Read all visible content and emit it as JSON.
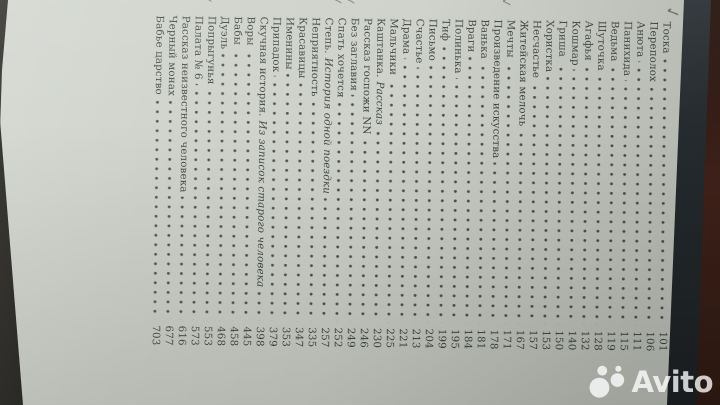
{
  "photo": {
    "watermark": "Avito"
  },
  "book_page": {
    "kind": "table-of-contents",
    "orientation": "rotated-90-cw",
    "entries": [
      {
        "title": "Тоска",
        "page": "101"
      },
      {
        "title": "Переполох",
        "page": "106"
      },
      {
        "title": "Анюта",
        "page": "111"
      },
      {
        "title": "Панихида",
        "page": "115"
      },
      {
        "title": "Ведьма",
        "page": "119"
      },
      {
        "title": "Шуточка",
        "page": "128"
      },
      {
        "title": "Агафья",
        "page": "132"
      },
      {
        "title": "Кошмар",
        "page": "140"
      },
      {
        "title": "Гриша",
        "page": "150"
      },
      {
        "title": "Хористка",
        "page": "153"
      },
      {
        "title": "Несчастье",
        "page": "157"
      },
      {
        "title": "Житейская мелочь",
        "page": "167"
      },
      {
        "title": "Мечты",
        "page": "171"
      },
      {
        "title": "Произведение искусства",
        "page": "178"
      },
      {
        "title": "Ванька",
        "page": "181"
      },
      {
        "title": "Враги",
        "page": "184"
      },
      {
        "title": "Полинька",
        "page": "195"
      },
      {
        "title": "Тиф",
        "page": "199"
      },
      {
        "title": "Письмо",
        "page": "204"
      },
      {
        "title": "Счастье",
        "page": "213"
      },
      {
        "title": "Драма",
        "page": "221"
      },
      {
        "title": "Мальчики",
        "page": "225"
      },
      {
        "title": "Каштанка.",
        "subtitle": "Рассказ",
        "page": "230"
      },
      {
        "title": "Рассказ госпожи NN",
        "page": "246"
      },
      {
        "title": "Без заглавия",
        "page": "249"
      },
      {
        "title": "Спать хочется",
        "page": "252"
      },
      {
        "title": "Степь.",
        "subtitle": "История одной поездки",
        "page": "257"
      },
      {
        "title": "Неприятность",
        "page": "335"
      },
      {
        "title": "Красавицы",
        "page": "347"
      },
      {
        "title": "Именины",
        "page": "353"
      },
      {
        "title": "Припадок",
        "page": "379"
      },
      {
        "title": "Скучная история.",
        "subtitle": "Из записок старого человека",
        "page": "398"
      },
      {
        "title": "Воры",
        "page": "445"
      },
      {
        "title": "Бабы",
        "page": "458"
      },
      {
        "title": "Дуэль",
        "page": "468"
      },
      {
        "title": "Попрыгунья",
        "page": "553"
      },
      {
        "title": "Палата № 6",
        "page": "573"
      },
      {
        "title": "Рассказ неизвестного человека",
        "page": "616"
      },
      {
        "title": "Черный монах",
        "page": "677"
      },
      {
        "title": "Бабье царство",
        "page": "703"
      }
    ],
    "marks": [
      {
        "line": 0,
        "glyph": "✓",
        "kind": "pen-check"
      },
      {
        "line": 13,
        "glyph": "✓",
        "kind": "pencil-check"
      },
      {
        "line": 25,
        "glyph": "✓",
        "kind": "pencil-check"
      },
      {
        "line": 26,
        "glyph": "✓",
        "kind": "pencil-check"
      },
      {
        "line": 36,
        "glyph": "✓",
        "kind": "pencil-check"
      }
    ]
  },
  "colors": {
    "paper": "#cdd1c9",
    "ink": "#3d443d",
    "pencil": "#82867c",
    "background": "#14130f",
    "cover_edge": "#2b3036",
    "wood_edge": "#44221a",
    "watermark": "#ffffff"
  }
}
